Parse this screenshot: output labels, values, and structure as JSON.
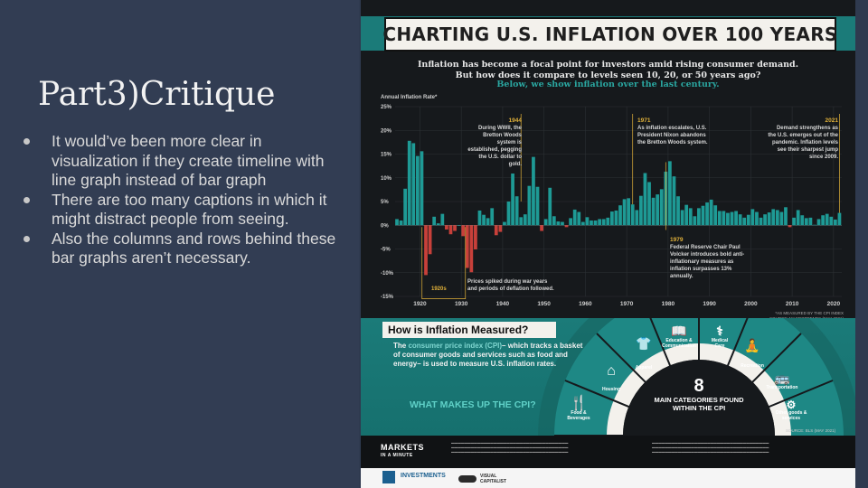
{
  "slide": {
    "title": "Part3)Critique",
    "bullets": [
      "It would’ve been more clear in visualization if they create timeline with line graph instead of bar graph",
      "There are too many captions in which it might distract people from seeing.",
      "Also the columns and rows behind these bar graphs aren’t necessary."
    ]
  },
  "infographic": {
    "title": "CHARTING U.S. INFLATION OVER 100 YEARS",
    "subtitle_line1": "Inflation has become a focal point for investors amid rising consumer demand.",
    "subtitle_line2": "But how does it compare to levels seen 10, 20, or 50 years ago?",
    "subtitle_line3": "Below, we show inflation over the last century.",
    "colors": {
      "teal": "#1b7b79",
      "bar_positive": "#1e9a95",
      "bar_negative": "#c8403a",
      "annotation": "#e2b23a"
    },
    "annotations": [
      {
        "date": "1944",
        "text": "During WWII, the Bretton Woods system is established, pegging the U.S. dollar to gold."
      },
      {
        "date": "1971",
        "text": "As inflation escalates, U.S. President Nixon abandons the Bretton Woods system."
      },
      {
        "date": "2021",
        "text": "Demand strengthens as the U.S. emerges out of the pandemic. Inflation levels see their sharpest jump since 2009."
      },
      {
        "date": "1979",
        "text": "Federal Reserve Chair Paul Volcker introduces bold anti-inflationary measures as inflation surpasses 13% annually."
      }
    ],
    "deflation_label": "1920s",
    "deflation_note": "Prices spiked during war years and periods of deflation followed.",
    "source_note": "*AS MEASURED BY THE CPI INDEX\nSOURCE: MACROTRENDS (MAY 2021)",
    "how_title": "How is Inflation Measured?",
    "how_text_pre": "The ",
    "how_text_link": "consumer price index (CPI)",
    "how_text_post": "– which tracks a basket of consumer goods and services such as food and energy– is used to measure U.S. inflation rates.",
    "cpi_question": "WHAT MAKES UP THE CPI?",
    "center_number": "8",
    "center_text": "MAIN CATEGORIES FOUND WITHIN THE CPI",
    "categories": [
      {
        "label": "Food & Beverages",
        "icon": "utensils-icon"
      },
      {
        "label": "Housing",
        "icon": "house-icon"
      },
      {
        "label": "Apparel",
        "icon": "shirt-icon"
      },
      {
        "label": "Education & Communication",
        "icon": "book-icon"
      },
      {
        "label": "Medical Care",
        "icon": "stethoscope-icon"
      },
      {
        "label": "Recreation",
        "icon": "person-icon"
      },
      {
        "label": "Transportation",
        "icon": "bus-icon"
      },
      {
        "label": "Other goods & services",
        "icon": "hand-money-icon"
      }
    ],
    "cpi_source": "SOURCE: BLS (MAY 2021)",
    "brand1_line1": "MARKETS",
    "brand1_line2": "IN A MINUTE",
    "brand2": "INVESTMENTS",
    "brand3": "VISUAL CAPITALIST"
  },
  "chart_data": {
    "type": "bar",
    "title": "",
    "xlabel": "",
    "ylabel": "Annual Inflation Rate*",
    "ylim": [
      -15,
      25
    ],
    "yticks": [
      "25%",
      "20%",
      "15%",
      "10%",
      "5%",
      "0%",
      "-5%",
      "-10%",
      "-15%"
    ],
    "xticks": [
      "1920",
      "1930",
      "1940",
      "1950",
      "1960",
      "1970",
      "1980",
      "1990",
      "2000",
      "2010",
      "2020"
    ],
    "x": [
      1914,
      1915,
      1916,
      1917,
      1918,
      1919,
      1920,
      1921,
      1922,
      1923,
      1924,
      1925,
      1926,
      1927,
      1928,
      1929,
      1930,
      1931,
      1932,
      1933,
      1934,
      1935,
      1936,
      1937,
      1938,
      1939,
      1940,
      1941,
      1942,
      1943,
      1944,
      1945,
      1946,
      1947,
      1948,
      1949,
      1950,
      1951,
      1952,
      1953,
      1954,
      1955,
      1956,
      1957,
      1958,
      1959,
      1960,
      1961,
      1962,
      1963,
      1964,
      1965,
      1966,
      1967,
      1968,
      1969,
      1970,
      1971,
      1972,
      1973,
      1974,
      1975,
      1976,
      1977,
      1978,
      1979,
      1980,
      1981,
      1982,
      1983,
      1984,
      1985,
      1986,
      1987,
      1988,
      1989,
      1990,
      1991,
      1992,
      1993,
      1994,
      1995,
      1996,
      1997,
      1998,
      1999,
      2000,
      2001,
      2002,
      2003,
      2004,
      2005,
      2006,
      2007,
      2008,
      2009,
      2010,
      2011,
      2012,
      2013,
      2014,
      2015,
      2016,
      2017,
      2018,
      2019,
      2020,
      2021
    ],
    "values": [
      1.3,
      1.0,
      7.7,
      17.8,
      17.3,
      14.6,
      15.6,
      -10.5,
      -6.1,
      1.8,
      0.4,
      2.4,
      -0.9,
      -1.9,
      -1.2,
      0.0,
      -2.3,
      -9.0,
      -9.9,
      -5.1,
      3.1,
      2.2,
      1.5,
      3.6,
      -2.1,
      -1.4,
      0.7,
      5.0,
      10.9,
      6.1,
      1.7,
      2.3,
      8.3,
      14.4,
      8.1,
      -1.2,
      1.3,
      7.9,
      1.9,
      0.8,
      0.7,
      -0.4,
      1.5,
      3.3,
      2.8,
      0.7,
      1.7,
      1.0,
      1.0,
      1.3,
      1.3,
      1.6,
      2.9,
      3.1,
      4.2,
      5.5,
      5.7,
      4.4,
      3.2,
      6.2,
      11.0,
      9.1,
      5.8,
      6.5,
      7.6,
      11.3,
      13.5,
      10.3,
      6.1,
      3.2,
      4.3,
      3.6,
      1.9,
      3.6,
      4.1,
      4.8,
      5.4,
      4.2,
      3.0,
      3.0,
      2.6,
      2.8,
      3.0,
      2.3,
      1.6,
      2.2,
      3.4,
      2.8,
      1.6,
      2.3,
      2.7,
      3.4,
      3.2,
      2.8,
      3.8,
      -0.4,
      1.6,
      3.2,
      2.1,
      1.5,
      1.6,
      0.1,
      1.3,
      2.1,
      2.4,
      1.8,
      1.2,
      2.6
    ],
    "grid": true
  }
}
